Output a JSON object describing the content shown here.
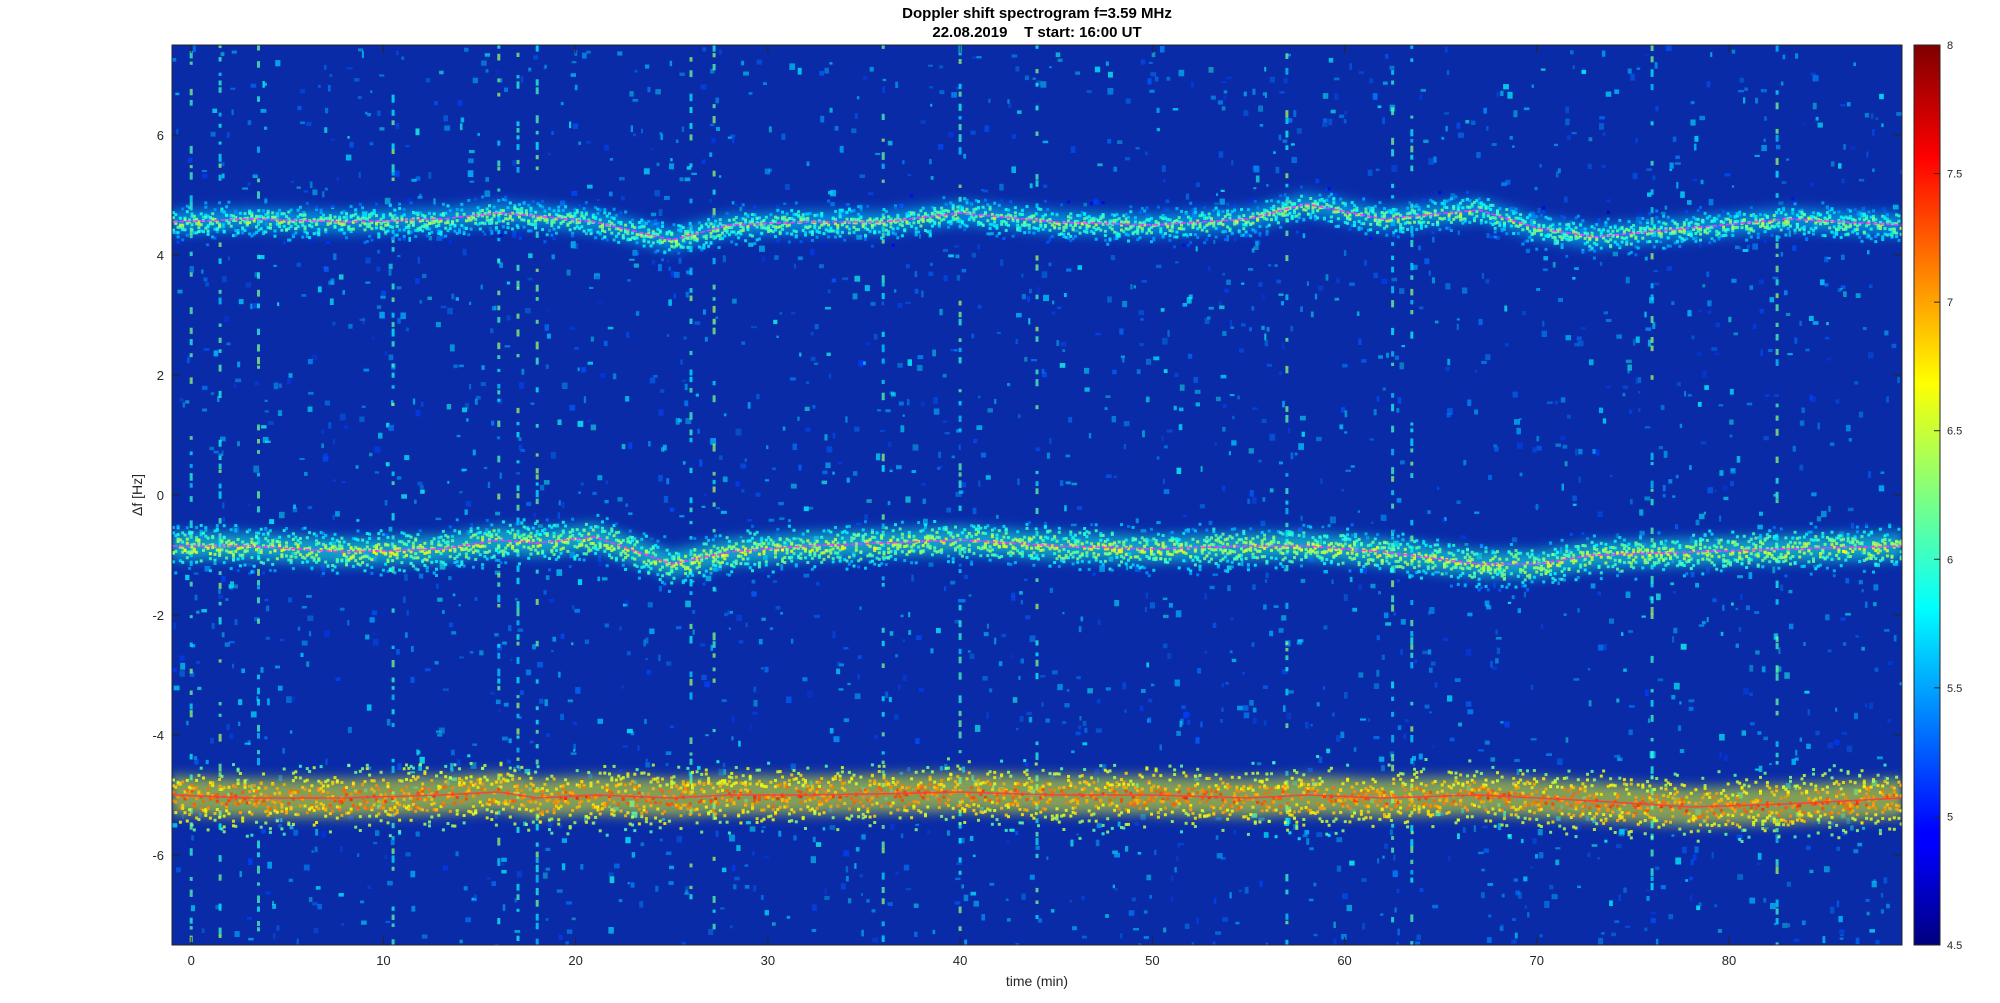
{
  "chart_data": {
    "type": "heatmap",
    "title": "Doppler shift spectrogram f=3.59 MHz",
    "subtitle": "22.08.2019    T start: 16:00 UT",
    "xlabel": "time (min)",
    "ylabel": "Δf [Hz]",
    "xlim": [
      -1,
      89
    ],
    "ylim": [
      -7.5,
      7.5
    ],
    "xticks": [
      0,
      10,
      20,
      30,
      40,
      50,
      60,
      70,
      80
    ],
    "yticks": [
      -6,
      -4,
      -2,
      0,
      2,
      4,
      6
    ],
    "colormap": "jet",
    "colorbar": {
      "range": [
        4.5,
        8
      ],
      "ticks": [
        4.5,
        5,
        5.5,
        6,
        6.5,
        7,
        7.5,
        8
      ]
    },
    "grid": false,
    "series": [
      {
        "time_min": [
          -1,
          3,
          8,
          13,
          16,
          18,
          21,
          25,
          28,
          32,
          36,
          40,
          45,
          50,
          55,
          58,
          62,
          67,
          70,
          73,
          78,
          83,
          89
        ],
        "doppler_hz": [
          4.55,
          4.6,
          4.55,
          4.6,
          4.7,
          4.65,
          4.55,
          4.25,
          4.5,
          4.55,
          4.55,
          4.7,
          4.55,
          4.5,
          4.6,
          4.85,
          4.6,
          4.75,
          4.45,
          4.3,
          4.45,
          4.6,
          4.5
        ]
      },
      {
        "time_min": [
          -1,
          3,
          8,
          13,
          16,
          18,
          21,
          25,
          28,
          32,
          36,
          40,
          45,
          50,
          55,
          58,
          62,
          67,
          70,
          73,
          78,
          83,
          89
        ],
        "doppler_hz": [
          -0.85,
          -0.85,
          -0.95,
          -0.9,
          -0.75,
          -0.8,
          -0.7,
          -1.15,
          -0.95,
          -0.85,
          -0.8,
          -0.75,
          -0.85,
          -0.9,
          -0.85,
          -0.85,
          -0.95,
          -1.15,
          -1.15,
          -1.0,
          -0.95,
          -0.9,
          -0.85
        ]
      },
      {
        "time_min": [
          -1,
          3,
          8,
          13,
          16,
          18,
          21,
          25,
          28,
          32,
          36,
          40,
          45,
          50,
          55,
          58,
          62,
          67,
          70,
          73,
          78,
          83,
          89
        ],
        "doppler_hz": [
          -5.0,
          -5.05,
          -5.05,
          -5.0,
          -4.95,
          -5.05,
          -5.0,
          -5.05,
          -5.0,
          -5.0,
          -4.98,
          -4.95,
          -5.0,
          -5.0,
          -5.05,
          -5.0,
          -5.05,
          -5.0,
          -5.05,
          -5.1,
          -5.2,
          -5.15,
          -5.05
        ]
      }
    ]
  }
}
